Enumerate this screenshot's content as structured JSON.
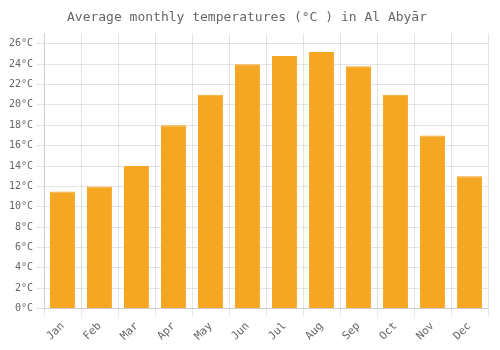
{
  "chart_data": {
    "type": "bar",
    "title": "Average monthly temperatures (°C ) in Al Abyār",
    "categories": [
      "Jan",
      "Feb",
      "Mar",
      "Apr",
      "May",
      "Jun",
      "Jul",
      "Aug",
      "Sep",
      "Oct",
      "Nov",
      "Dec"
    ],
    "values": [
      11.5,
      12.0,
      14.0,
      18.0,
      21.0,
      24.0,
      24.8,
      25.2,
      23.8,
      21.0,
      17.0,
      13.0
    ],
    "color": "#F5A623",
    "ylim": [
      0,
      27
    ],
    "yticks": [
      {
        "value": 0,
        "label": "0°C"
      },
      {
        "value": 2,
        "label": "2°C"
      },
      {
        "value": 4,
        "label": "4°C"
      },
      {
        "value": 6,
        "label": "6°C"
      },
      {
        "value": 8,
        "label": "8°C"
      },
      {
        "value": 10,
        "label": "10°C"
      },
      {
        "value": 12,
        "label": "12°C"
      },
      {
        "value": 14,
        "label": "14°C"
      },
      {
        "value": 16,
        "label": "16°C"
      },
      {
        "value": 18,
        "label": "18°C"
      },
      {
        "value": 20,
        "label": "20°C"
      },
      {
        "value": 22,
        "label": "22°C"
      },
      {
        "value": 24,
        "label": "24°C"
      },
      {
        "value": 26,
        "label": "26°C"
      }
    ],
    "grid": true
  }
}
